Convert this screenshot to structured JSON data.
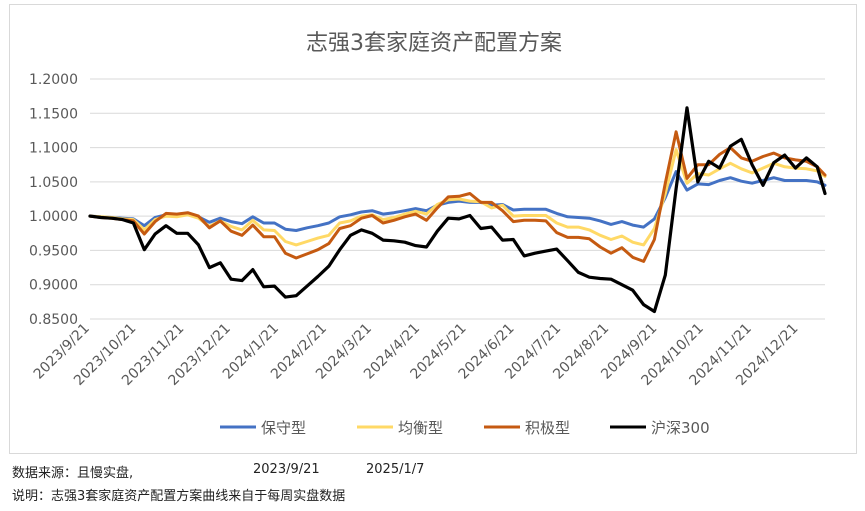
{
  "footer": {
    "source_label": "数据来源：且慢实盘,",
    "start_date": "2023/9/21",
    "end_date": "2025/1/7",
    "note": "说明：志强3套家庭资产配置方案曲线来自于每周实盘数据"
  },
  "chart_data": {
    "type": "line",
    "title": "志强3套家庭资产配置方案",
    "xlabel": "",
    "ylabel": "",
    "ylim": [
      0.85,
      1.2
    ],
    "yticks": [
      "1.2000",
      "1.1500",
      "1.1000",
      "1.0500",
      "1.0000",
      "0.9500",
      "0.9000",
      "0.8500"
    ],
    "xticks": [
      "2023/9/21",
      "2023/10/21",
      "2023/11/21",
      "2023/12/21",
      "2024/1/21",
      "2024/2/21",
      "2024/3/21",
      "2024/4/21",
      "2024/5/21",
      "2024/6/21",
      "2024/7/21",
      "2024/8/21",
      "2024/9/21",
      "2024/10/21",
      "2024/11/21",
      "2024/12/21"
    ],
    "grid": true,
    "legend": "bottom",
    "x": [
      "2023/9/21",
      "2023/9/28",
      "2023/10/5",
      "2023/10/12",
      "2023/10/19",
      "2023/10/26",
      "2023/11/2",
      "2023/11/9",
      "2023/11/16",
      "2023/11/23",
      "2023/11/30",
      "2023/12/7",
      "2023/12/14",
      "2023/12/21",
      "2023/12/28",
      "2024/1/4",
      "2024/1/11",
      "2024/1/18",
      "2024/1/25",
      "2024/2/1",
      "2024/2/8",
      "2024/2/15",
      "2024/2/22",
      "2024/2/29",
      "2024/3/7",
      "2024/3/14",
      "2024/3/21",
      "2024/3/28",
      "2024/4/4",
      "2024/4/11",
      "2024/4/18",
      "2024/4/25",
      "2024/5/2",
      "2024/5/9",
      "2024/5/16",
      "2024/5/23",
      "2024/5/30",
      "2024/6/6",
      "2024/6/13",
      "2024/6/20",
      "2024/6/27",
      "2024/7/4",
      "2024/7/11",
      "2024/7/18",
      "2024/7/25",
      "2024/8/1",
      "2024/8/8",
      "2024/8/15",
      "2024/8/22",
      "2024/8/29",
      "2024/9/5",
      "2024/9/12",
      "2024/9/19",
      "2024/9/26",
      "2024/10/3",
      "2024/10/10",
      "2024/10/17",
      "2024/10/24",
      "2024/10/31",
      "2024/11/7",
      "2024/11/14",
      "2024/11/21",
      "2024/11/28",
      "2024/12/5",
      "2024/12/12",
      "2024/12/19",
      "2024/12/26",
      "2025/1/2",
      "2025/1/7"
    ],
    "series": [
      {
        "name": "保守型",
        "color": "#4472c4",
        "values": [
          1.0,
          0.999,
          0.998,
          0.997,
          0.996,
          0.986,
          0.998,
          1.002,
          1.001,
          1.003,
          0.999,
          0.991,
          0.997,
          0.992,
          0.989,
          0.999,
          0.99,
          0.99,
          0.981,
          0.979,
          0.983,
          0.986,
          0.99,
          0.999,
          1.002,
          1.006,
          1.008,
          1.003,
          1.005,
          1.008,
          1.011,
          1.008,
          1.016,
          1.02,
          1.022,
          1.02,
          1.02,
          1.016,
          1.017,
          1.009,
          1.01,
          1.01,
          1.01,
          1.004,
          0.999,
          0.998,
          0.997,
          0.993,
          0.988,
          0.992,
          0.987,
          0.984,
          0.996,
          1.027,
          1.065,
          1.038,
          1.047,
          1.046,
          1.052,
          1.056,
          1.051,
          1.048,
          1.052,
          1.056,
          1.052,
          1.052,
          1.052,
          1.05,
          1.045
        ]
      },
      {
        "name": "均衡型",
        "color": "#ffd966",
        "values": [
          1.0,
          0.999,
          0.998,
          0.996,
          0.995,
          0.98,
          0.995,
          1.0,
          0.999,
          1.002,
          0.997,
          0.985,
          0.993,
          0.985,
          0.98,
          0.994,
          0.98,
          0.979,
          0.963,
          0.958,
          0.963,
          0.968,
          0.972,
          0.99,
          0.993,
          1.0,
          1.002,
          0.995,
          0.998,
          1.003,
          1.007,
          1.003,
          1.017,
          1.024,
          1.025,
          1.022,
          1.021,
          1.012,
          1.016,
          1.0,
          1.001,
          1.001,
          1.001,
          0.99,
          0.984,
          0.984,
          0.98,
          0.972,
          0.966,
          0.971,
          0.962,
          0.958,
          0.982,
          1.033,
          1.097,
          1.048,
          1.062,
          1.06,
          1.069,
          1.077,
          1.069,
          1.063,
          1.07,
          1.077,
          1.072,
          1.07,
          1.069,
          1.066,
          1.058
        ]
      },
      {
        "name": "积极型",
        "color": "#c55a11",
        "values": [
          1.0,
          0.998,
          0.997,
          0.995,
          0.993,
          0.974,
          0.992,
          1.004,
          1.003,
          1.005,
          1.0,
          0.983,
          0.993,
          0.978,
          0.972,
          0.987,
          0.97,
          0.97,
          0.946,
          0.939,
          0.945,
          0.951,
          0.96,
          0.982,
          0.986,
          0.997,
          1.001,
          0.99,
          0.994,
          0.999,
          1.003,
          0.994,
          1.012,
          1.028,
          1.029,
          1.033,
          1.02,
          1.02,
          1.008,
          0.992,
          0.994,
          0.994,
          0.993,
          0.976,
          0.969,
          0.969,
          0.967,
          0.955,
          0.946,
          0.954,
          0.94,
          0.934,
          0.966,
          1.048,
          1.123,
          1.055,
          1.075,
          1.075,
          1.09,
          1.1,
          1.085,
          1.08,
          1.087,
          1.092,
          1.085,
          1.082,
          1.08,
          1.072,
          1.06
        ]
      },
      {
        "name": "沪深300",
        "color": "#000000",
        "values": [
          1.0,
          0.998,
          0.997,
          0.995,
          0.99,
          0.951,
          0.974,
          0.986,
          0.975,
          0.975,
          0.958,
          0.925,
          0.932,
          0.908,
          0.906,
          0.922,
          0.897,
          0.898,
          0.882,
          0.884,
          0.898,
          0.912,
          0.927,
          0.951,
          0.972,
          0.98,
          0.975,
          0.965,
          0.964,
          0.962,
          0.957,
          0.955,
          0.978,
          0.997,
          0.996,
          1.001,
          0.982,
          0.984,
          0.965,
          0.966,
          0.942,
          0.946,
          0.949,
          0.952,
          0.935,
          0.918,
          0.911,
          0.909,
          0.908,
          0.9,
          0.892,
          0.871,
          0.861,
          0.914,
          1.04,
          1.158,
          1.05,
          1.08,
          1.07,
          1.102,
          1.112,
          1.075,
          1.045,
          1.078,
          1.089,
          1.07,
          1.085,
          1.072,
          1.033
        ]
      }
    ]
  }
}
